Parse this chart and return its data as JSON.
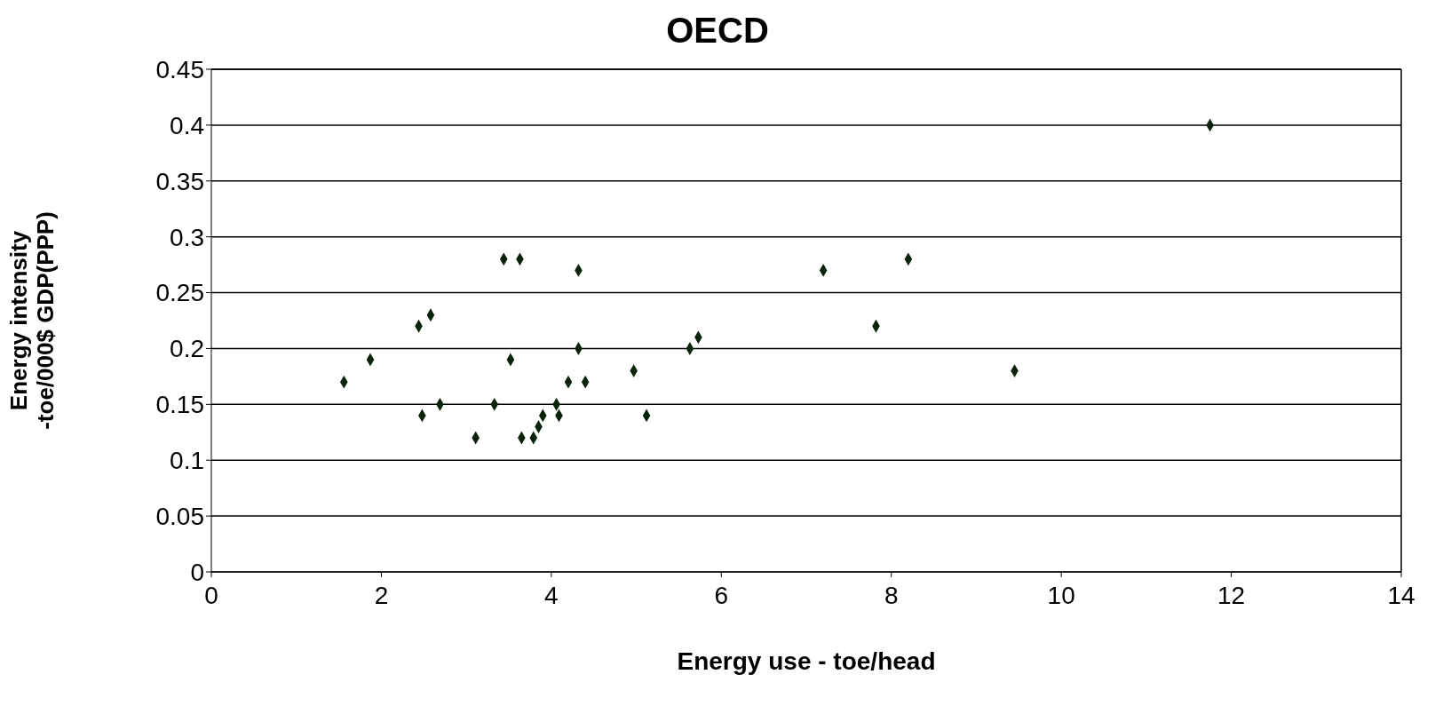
{
  "chart_data": {
    "type": "scatter",
    "title": "OECD",
    "xlabel": "Energy use - toe/head",
    "ylabel": "Energy intensity -toe/000$ GDP(PPP)",
    "x": [
      1.56,
      1.87,
      2.44,
      2.58,
      2.48,
      2.69,
      3.11,
      3.33,
      3.44,
      3.63,
      3.52,
      3.65,
      3.79,
      3.85,
      3.9,
      4.06,
      4.09,
      4.2,
      4.32,
      4.32,
      4.4,
      4.97,
      5.12,
      5.63,
      5.73,
      7.2,
      7.82,
      8.2,
      9.45,
      11.75
    ],
    "values": [
      0.17,
      0.19,
      0.22,
      0.23,
      0.14,
      0.15,
      0.12,
      0.15,
      0.28,
      0.28,
      0.19,
      0.12,
      0.12,
      0.13,
      0.14,
      0.15,
      0.14,
      0.17,
      0.27,
      0.2,
      0.17,
      0.18,
      0.14,
      0.2,
      0.21,
      0.27,
      0.22,
      0.28,
      0.18,
      0.4
    ],
    "color": "#0a240a",
    "marker": "diamond",
    "grid": "y",
    "xlim": [
      0,
      14
    ],
    "xticks": [
      0,
      2,
      4,
      6,
      8,
      10,
      12,
      14
    ],
    "ylim": [
      0,
      0.45
    ],
    "yticks": [
      0,
      0.05,
      0.1,
      0.15,
      0.2,
      0.25,
      0.3,
      0.35,
      0.4,
      0.45
    ]
  }
}
